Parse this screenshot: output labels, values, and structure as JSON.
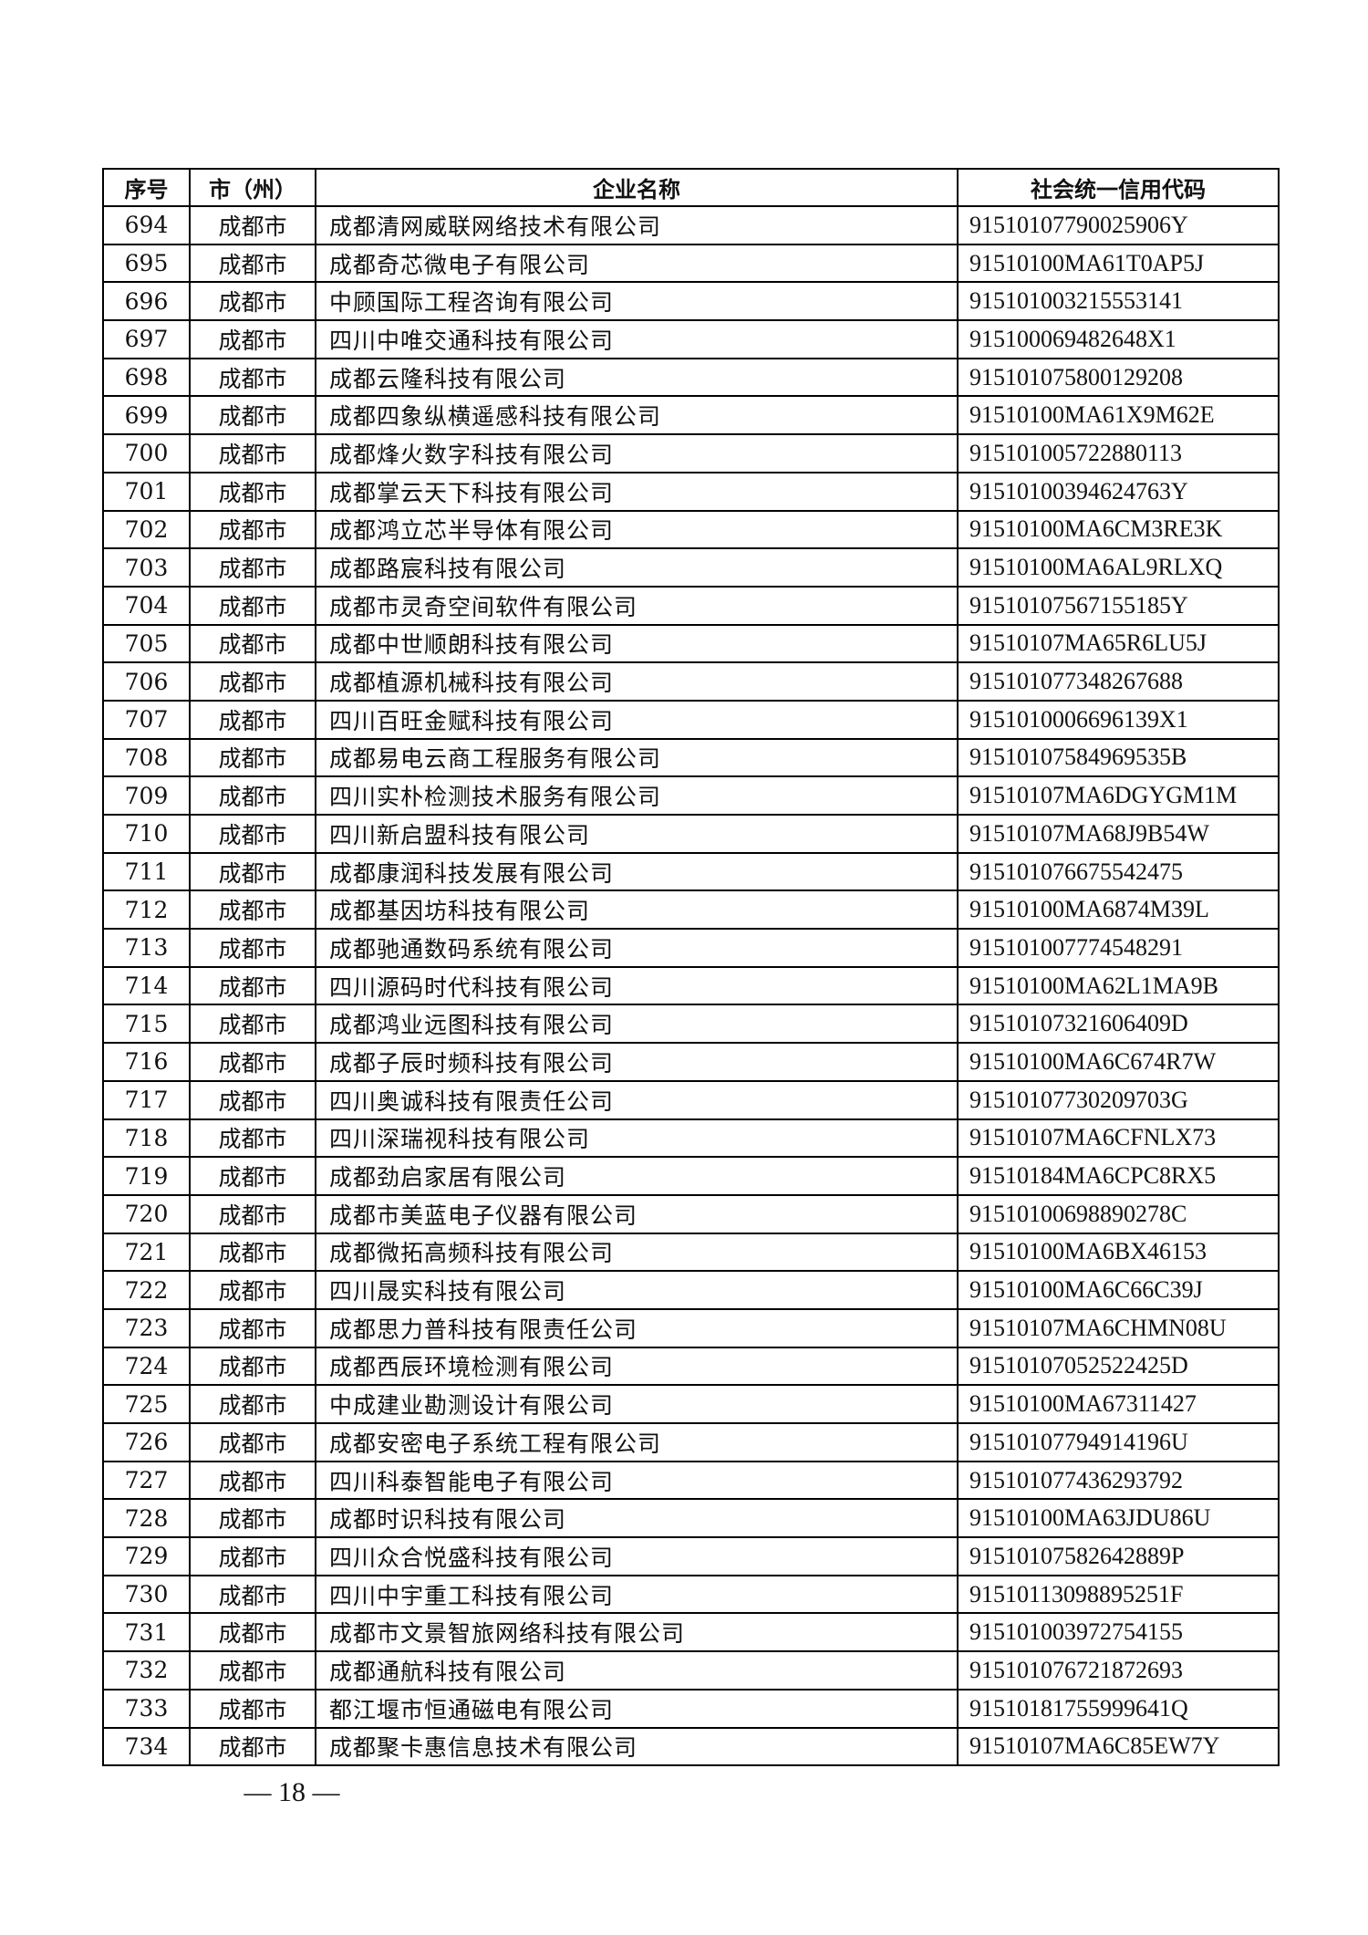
{
  "table": {
    "headers": [
      "序号",
      "市（州）",
      "企业名称",
      "社会统一信用代码"
    ],
    "rows": [
      [
        "694",
        "成都市",
        "成都清网威联网络技术有限公司",
        "91510107790025906Y"
      ],
      [
        "695",
        "成都市",
        "成都奇芯微电子有限公司",
        "91510100MA61T0AP5J"
      ],
      [
        "696",
        "成都市",
        "中顾国际工程咨询有限公司",
        "915101003215553141"
      ],
      [
        "697",
        "成都市",
        "四川中唯交通科技有限公司",
        "915100069482648X1"
      ],
      [
        "698",
        "成都市",
        "成都云隆科技有限公司",
        "915101075800129208"
      ],
      [
        "699",
        "成都市",
        "成都四象纵横遥感科技有限公司",
        "91510100MA61X9M62E"
      ],
      [
        "700",
        "成都市",
        "成都烽火数字科技有限公司",
        "915101005722880113"
      ],
      [
        "701",
        "成都市",
        "成都掌云天下科技有限公司",
        "91510100394624763Y"
      ],
      [
        "702",
        "成都市",
        "成都鸿立芯半导体有限公司",
        "91510100MA6CM3RE3K"
      ],
      [
        "703",
        "成都市",
        "成都路宸科技有限公司",
        "91510100MA6AL9RLXQ"
      ],
      [
        "704",
        "成都市",
        "成都市灵奇空间软件有限公司",
        "91510107567155185Y"
      ],
      [
        "705",
        "成都市",
        "成都中世顺朗科技有限公司",
        "91510107MA65R6LU5J"
      ],
      [
        "706",
        "成都市",
        "成都植源机械科技有限公司",
        "915101077348267688"
      ],
      [
        "707",
        "成都市",
        "四川百旺金赋科技有限公司",
        "9151010006696139X1"
      ],
      [
        "708",
        "成都市",
        "成都易电云商工程服务有限公司",
        "91510107584969535B"
      ],
      [
        "709",
        "成都市",
        "四川实朴检测技术服务有限公司",
        "91510107MA6DGYGM1M"
      ],
      [
        "710",
        "成都市",
        "四川新启盟科技有限公司",
        "91510107MA68J9B54W"
      ],
      [
        "711",
        "成都市",
        "成都康润科技发展有限公司",
        "915101076675542475"
      ],
      [
        "712",
        "成都市",
        "成都基因坊科技有限公司",
        "91510100MA6874M39L"
      ],
      [
        "713",
        "成都市",
        "成都驰通数码系统有限公司",
        "915101007774548291"
      ],
      [
        "714",
        "成都市",
        "四川源码时代科技有限公司",
        "91510100MA62L1MA9B"
      ],
      [
        "715",
        "成都市",
        "成都鸿业远图科技有限公司",
        "91510107321606409D"
      ],
      [
        "716",
        "成都市",
        "成都子辰时频科技有限公司",
        "91510100MA6C674R7W"
      ],
      [
        "717",
        "成都市",
        "四川奥诚科技有限责任公司",
        "91510107730209703G"
      ],
      [
        "718",
        "成都市",
        "四川深瑞视科技有限公司",
        "91510107MA6CFNLX73"
      ],
      [
        "719",
        "成都市",
        "成都劲启家居有限公司",
        "91510184MA6CPC8RX5"
      ],
      [
        "720",
        "成都市",
        "成都市美蓝电子仪器有限公司",
        "91510100698890278C"
      ],
      [
        "721",
        "成都市",
        "成都微拓高频科技有限公司",
        "91510100MA6BX46153"
      ],
      [
        "722",
        "成都市",
        "四川晟实科技有限公司",
        "91510100MA6C66C39J"
      ],
      [
        "723",
        "成都市",
        "成都思力普科技有限责任公司",
        "91510107MA6CHMN08U"
      ],
      [
        "724",
        "成都市",
        "成都西辰环境检测有限公司",
        "91510107052522425D"
      ],
      [
        "725",
        "成都市",
        "中成建业勘测设计有限公司",
        "91510100MA67311427"
      ],
      [
        "726",
        "成都市",
        "成都安密电子系统工程有限公司",
        "91510107794914196U"
      ],
      [
        "727",
        "成都市",
        "四川科泰智能电子有限公司",
        "915101077436293792"
      ],
      [
        "728",
        "成都市",
        "成都时识科技有限公司",
        "91510100MA63JDU86U"
      ],
      [
        "729",
        "成都市",
        "四川众合悦盛科技有限公司",
        "91510107582642889P"
      ],
      [
        "730",
        "成都市",
        "四川中宇重工科技有限公司",
        "91510113098895251F"
      ],
      [
        "731",
        "成都市",
        "成都市文景智旅网络科技有限公司",
        "915101003972754155"
      ],
      [
        "732",
        "成都市",
        "成都通航科技有限公司",
        "915101076721872693"
      ],
      [
        "733",
        "成都市",
        "都江堰市恒通磁电有限公司",
        "91510181755999641Q"
      ],
      [
        "734",
        "成都市",
        "成都聚卡惠信息技术有限公司",
        "91510107MA6C85EW7Y"
      ]
    ]
  },
  "footer": {
    "page_number": "— 18 —"
  }
}
